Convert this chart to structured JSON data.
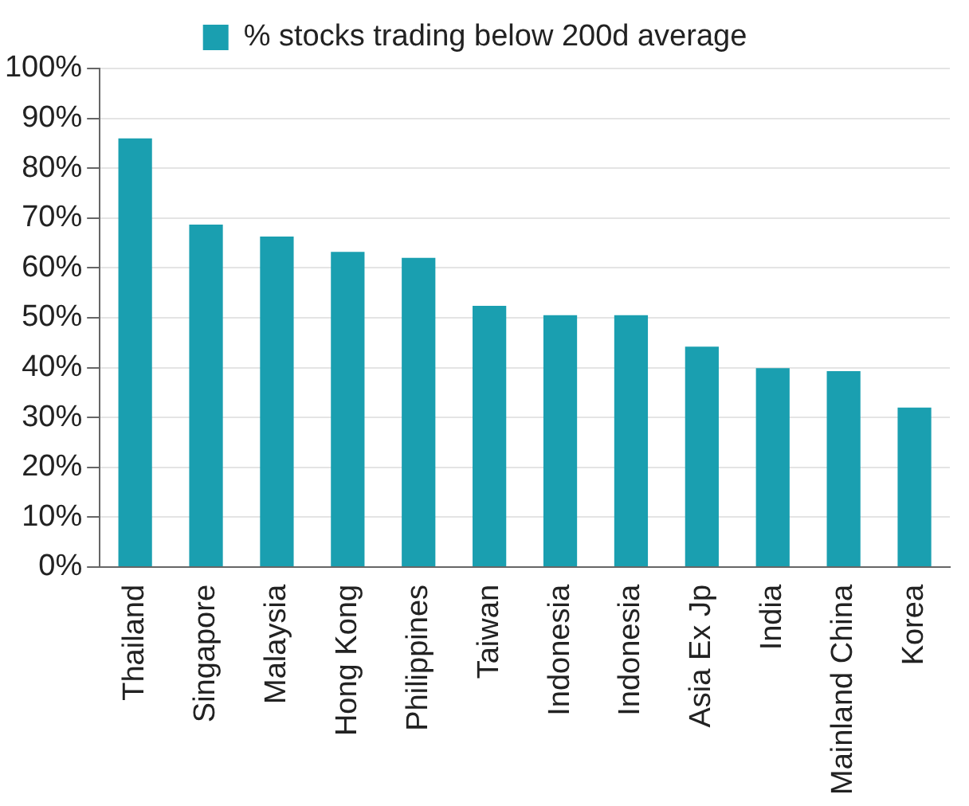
{
  "chart_data": {
    "type": "bar",
    "categories": [
      "Thailand",
      "Singapore",
      "Malaysia",
      "Hong Kong",
      "Philippines",
      "Taiwan",
      "Indonesia",
      "Indonesia",
      "Asia Ex Jp",
      "India",
      "Mainland China",
      "Korea"
    ],
    "series": [
      {
        "name": "% stocks trading below 200d average",
        "color": "#1a9fb0",
        "values": [
          86,
          68.7,
          66.3,
          63.2,
          62,
          52.4,
          50.5,
          50.5,
          44.2,
          39.9,
          39.3,
          32
        ]
      }
    ],
    "ylim": [
      0,
      100
    ],
    "yticks": [
      {
        "value": 0,
        "label": "0%"
      },
      {
        "value": 10,
        "label": "10%"
      },
      {
        "value": 20,
        "label": "20%"
      },
      {
        "value": 30,
        "label": "30%"
      },
      {
        "value": 40,
        "label": "40%"
      },
      {
        "value": 50,
        "label": "50%"
      },
      {
        "value": 60,
        "label": "60%"
      },
      {
        "value": 70,
        "label": "70%"
      },
      {
        "value": 80,
        "label": "80%"
      },
      {
        "value": 90,
        "label": "90%"
      },
      {
        "value": 100,
        "label": "100%"
      }
    ],
    "grid": "y",
    "legend": "top"
  }
}
